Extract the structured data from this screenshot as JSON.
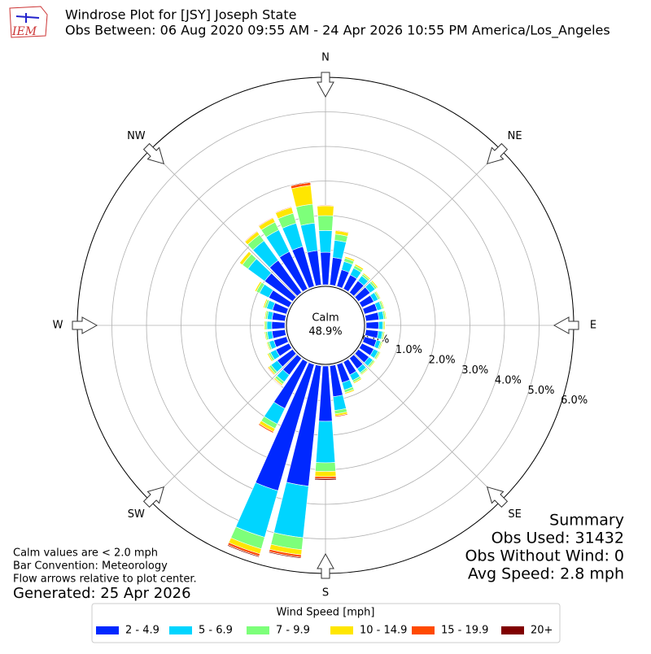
{
  "header": {
    "logo": "IEM",
    "title": "Windrose Plot for [JSY] Joseph State",
    "subtitle": "Obs Between: 06 Aug 2020 09:55 AM - 24 Apr 2026 10:55 PM America/Los_Angeles"
  },
  "chart_data": {
    "type": "windrose",
    "x": [
      0,
      10,
      20,
      30,
      40,
      50,
      60,
      70,
      80,
      90,
      100,
      110,
      120,
      130,
      140,
      150,
      160,
      170,
      180,
      190,
      200,
      210,
      220,
      230,
      240,
      250,
      260,
      270,
      280,
      290,
      300,
      310,
      320,
      330,
      340,
      350
    ],
    "xticks": [
      {
        "value": 0,
        "label": "N"
      },
      {
        "value": 45,
        "label": "NE"
      },
      {
        "value": 90,
        "label": "E"
      },
      {
        "value": 135,
        "label": "SE"
      },
      {
        "value": 180,
        "label": "S"
      },
      {
        "value": 225,
        "label": "SW"
      },
      {
        "value": 270,
        "label": "W"
      },
      {
        "value": 315,
        "label": "NW"
      }
    ],
    "ylim": [
      0,
      6
    ],
    "yticks": [
      {
        "value": 0,
        "label": "0.0%"
      },
      {
        "value": 1,
        "label": "1.0%"
      },
      {
        "value": 2,
        "label": "2.0%"
      },
      {
        "value": 3,
        "label": "3.0%"
      },
      {
        "value": 4,
        "label": "4.0%"
      },
      {
        "value": 5,
        "label": "5.0%"
      },
      {
        "value": 6,
        "label": "6.0%"
      }
    ],
    "grid": true,
    "calm_label": "Calm",
    "calm_value": 48.9,
    "calm_value_label": "48.9%",
    "legend_title": "Wind Speed [mph]",
    "series": [
      {
        "name": "2 - 4.9",
        "color": "#0028ff",
        "values": [
          0.94,
          0.8,
          0.5,
          0.45,
          0.42,
          0.42,
          0.38,
          0.38,
          0.38,
          0.36,
          0.36,
          0.36,
          0.38,
          0.38,
          0.38,
          0.42,
          0.55,
          0.9,
          1.6,
          3.5,
          3.8,
          1.5,
          0.6,
          0.55,
          0.42,
          0.38,
          0.38,
          0.38,
          0.38,
          0.42,
          0.65,
          1.0,
          1.15,
          1.2,
          1.2,
          1.0
        ]
      },
      {
        "name": "5 - 6.9",
        "color": "#00d5ff",
        "values": [
          0.63,
          0.5,
          0.25,
          0.22,
          0.18,
          0.18,
          0.14,
          0.14,
          0.14,
          0.12,
          0.12,
          0.12,
          0.14,
          0.14,
          0.14,
          0.18,
          0.22,
          0.4,
          1.2,
          1.5,
          1.4,
          0.5,
          0.25,
          0.22,
          0.18,
          0.14,
          0.14,
          0.14,
          0.14,
          0.18,
          0.3,
          0.6,
          0.7,
          0.7,
          0.7,
          0.8
        ]
      },
      {
        "name": "7 - 9.9",
        "color": "#7dff7a",
        "values": [
          0.43,
          0.18,
          0.1,
          0.08,
          0.06,
          0.06,
          0.05,
          0.05,
          0.05,
          0.04,
          0.04,
          0.04,
          0.05,
          0.05,
          0.05,
          0.06,
          0.08,
          0.1,
          0.25,
          0.35,
          0.35,
          0.15,
          0.08,
          0.07,
          0.06,
          0.05,
          0.05,
          0.05,
          0.05,
          0.06,
          0.1,
          0.2,
          0.22,
          0.25,
          0.3,
          0.55
        ]
      },
      {
        "name": "10 - 14.9",
        "color": "#ffe600",
        "values": [
          0.28,
          0.1,
          0.05,
          0.05,
          0.04,
          0.04,
          0.03,
          0.03,
          0.03,
          0.03,
          0.03,
          0.03,
          0.03,
          0.03,
          0.03,
          0.04,
          0.04,
          0.06,
          0.15,
          0.15,
          0.15,
          0.1,
          0.04,
          0.04,
          0.04,
          0.03,
          0.03,
          0.03,
          0.03,
          0.04,
          0.05,
          0.1,
          0.11,
          0.13,
          0.18,
          0.55
        ]
      },
      {
        "name": "15 - 19.9",
        "color": "#ff4a00",
        "values": [
          0.02,
          0.02,
          0,
          0,
          0,
          0,
          0,
          0,
          0,
          0,
          0,
          0,
          0,
          0,
          0,
          0,
          0.01,
          0.03,
          0.06,
          0.07,
          0.07,
          0.04,
          0.02,
          0.02,
          0,
          0,
          0,
          0,
          0,
          0,
          0,
          0,
          0.02,
          0.02,
          0.02,
          0.08
        ]
      },
      {
        "name": "20+",
        "color": "#800000",
        "values": [
          0,
          0,
          0,
          0,
          0,
          0,
          0,
          0,
          0,
          0,
          0,
          0,
          0,
          0,
          0,
          0,
          0,
          0.01,
          0.04,
          0.03,
          0.03,
          0.01,
          0.01,
          0,
          0,
          0,
          0,
          0,
          0,
          0,
          0,
          0,
          0,
          0,
          0,
          0.02
        ]
      }
    ]
  },
  "notes": [
    "Calm values are < 2.0 mph",
    "Bar Convention: Meteorology",
    "Flow arrows relative to plot center."
  ],
  "generated": "Generated: 25 Apr 2026",
  "summary": {
    "title": "Summary",
    "lines": [
      "Obs Used: 31432",
      "Obs Without Wind: 0",
      "Avg Speed: 2.8 mph"
    ]
  }
}
